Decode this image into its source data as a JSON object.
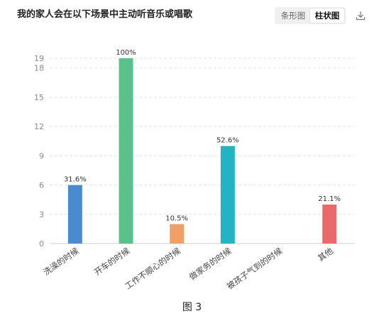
{
  "title": "我的家人会在以下场景中主动听音乐或唱歌",
  "toggle": {
    "options": [
      "条形图",
      "柱状图"
    ],
    "active": "柱状图"
  },
  "download_icon": "download-icon",
  "caption": "图 3",
  "chart_data": {
    "type": "bar",
    "categories": [
      "洗澡的时候",
      "开车的时候",
      "工作不顺心的时候",
      "做家务的时候",
      "被孩子气到的时候",
      "其他"
    ],
    "values": [
      6,
      19,
      2,
      10,
      0,
      4
    ],
    "labels": [
      "31.6%",
      "100%",
      "10.5%",
      "52.6%",
      "",
      "21.1%"
    ],
    "colors": [
      "#4a8bd0",
      "#5cc08c",
      "#f0a066",
      "#24b3c2",
      "#8e7cc3",
      "#e86a6a"
    ],
    "y_ticks": [
      0,
      3,
      6,
      9,
      12,
      15,
      18,
      19
    ],
    "ylim": [
      0,
      19
    ],
    "grid": true,
    "grid_style": "dashed",
    "xlabel": "",
    "ylabel": ""
  }
}
